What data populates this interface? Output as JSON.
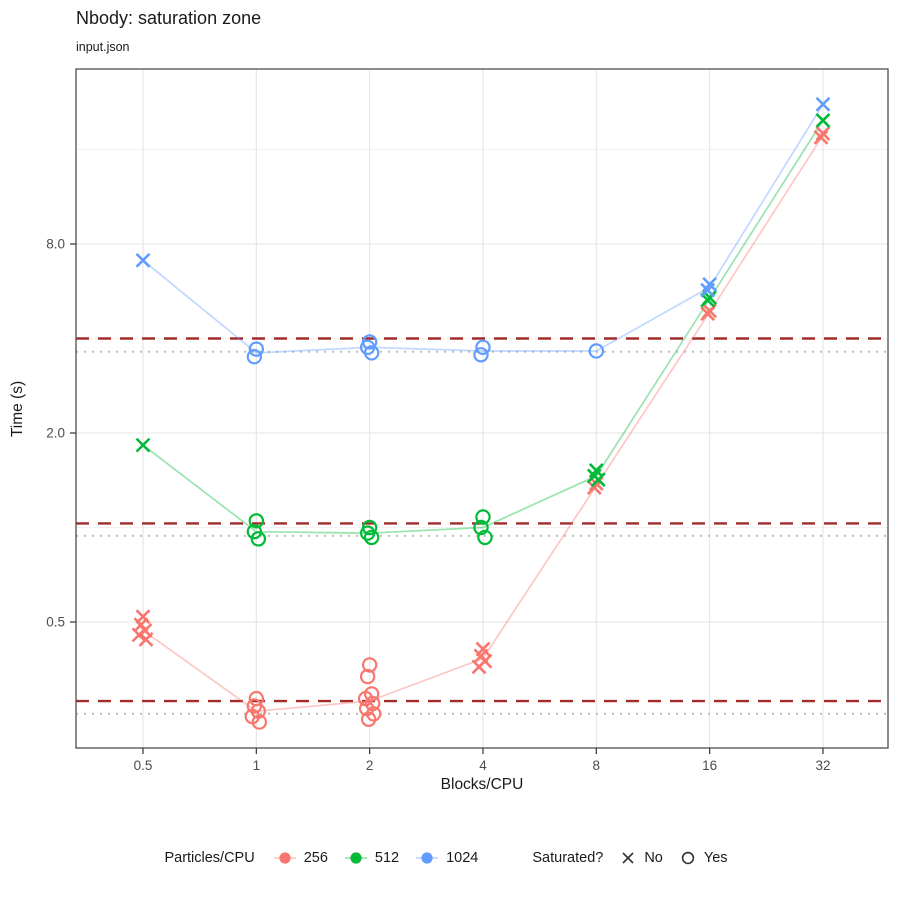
{
  "chart_data": {
    "type": "scatter",
    "title": "Nbody: saturation zone",
    "subtitle": "input.json",
    "xlabel": "Blocks/CPU",
    "ylabel": "Time (s)",
    "x_scale": {
      "type": "log2",
      "ticks": [
        {
          "v": 0.5,
          "label": "0.5"
        },
        {
          "v": 1,
          "label": "1"
        },
        {
          "v": 2,
          "label": "2"
        },
        {
          "v": 4,
          "label": "4"
        },
        {
          "v": 8,
          "label": "8"
        },
        {
          "v": 16,
          "label": "16"
        },
        {
          "v": 32,
          "label": "32"
        }
      ]
    },
    "y_scale": {
      "type": "log2",
      "ticks": [
        {
          "v": 0.5,
          "label": "0.5"
        },
        {
          "v": 2.0,
          "label": "2.0"
        },
        {
          "v": 8.0,
          "label": "8.0"
        }
      ],
      "minor": [
        1,
        4,
        16
      ],
      "range": [
        0.2,
        26
      ]
    },
    "color_legend_title": "Particles/CPU",
    "shape_legend": {
      "title": "Saturated?",
      "no_label": "No",
      "yes_label": "Yes"
    },
    "styles": {
      "threshold_color": "#a02c2c",
      "floor_color": "#bdbdbd",
      "grid_major": "#e4e4e4",
      "grid_minor": "#f1f1f1",
      "panel_border": "#4d4d4d",
      "tick_text": "#4d4d4d"
    },
    "series": [
      {
        "name": "256",
        "color": "#F8766D",
        "threshold_dashed": 0.28,
        "floor_dotted": 0.255,
        "clusters": [
          {
            "x": 0.5,
            "saturated": false,
            "times": [
              0.52,
              0.49,
              0.47,
              0.455,
              0.44
            ]
          },
          {
            "x": 1,
            "saturated": true,
            "times": [
              0.285,
              0.27,
              0.26,
              0.25,
              0.24
            ]
          },
          {
            "x": 2,
            "saturated": true,
            "times": [
              0.365,
              0.335,
              0.295,
              0.285,
              0.275,
              0.265,
              0.255,
              0.245
            ]
          },
          {
            "x": 4,
            "saturated": false,
            "times": [
              0.41,
              0.39,
              0.375,
              0.36
            ]
          },
          {
            "x": 8,
            "saturated": false,
            "times": [
              1.38,
              1.34
            ]
          },
          {
            "x": 16,
            "saturated": false,
            "times": [
              4.9,
              4.8
            ]
          },
          {
            "x": 32,
            "saturated": false,
            "times": [
              18.0,
              17.5
            ]
          }
        ]
      },
      {
        "name": "512",
        "color": "#00BA38",
        "threshold_dashed": 1.03,
        "floor_dotted": 0.94,
        "clusters": [
          {
            "x": 0.5,
            "saturated": false,
            "times": [
              1.83
            ]
          },
          {
            "x": 1,
            "saturated": true,
            "times": [
              1.05,
              0.97,
              0.92
            ]
          },
          {
            "x": 2,
            "saturated": true,
            "times": [
              1.0,
              0.96,
              0.93
            ]
          },
          {
            "x": 4,
            "saturated": true,
            "times": [
              1.08,
              1.0,
              0.93
            ]
          },
          {
            "x": 8,
            "saturated": false,
            "times": [
              1.52,
              1.46,
              1.42
            ]
          },
          {
            "x": 16,
            "saturated": false,
            "times": [
              5.4,
              5.3
            ]
          },
          {
            "x": 32,
            "saturated": false,
            "times": [
              19.8
            ]
          }
        ]
      },
      {
        "name": "1024",
        "color": "#619CFF",
        "threshold_dashed": 4.0,
        "floor_dotted": 3.63,
        "clusters": [
          {
            "x": 0.5,
            "saturated": false,
            "times": [
              7.1
            ]
          },
          {
            "x": 1,
            "saturated": true,
            "times": [
              3.7,
              3.5
            ]
          },
          {
            "x": 2,
            "saturated": true,
            "times": [
              3.9,
              3.75,
              3.6
            ]
          },
          {
            "x": 4,
            "saturated": true,
            "times": [
              3.75,
              3.55
            ]
          },
          {
            "x": 8,
            "saturated": true,
            "times": [
              3.65
            ]
          },
          {
            "x": 16,
            "saturated": false,
            "times": [
              5.95,
              5.7
            ]
          },
          {
            "x": 32,
            "saturated": false,
            "times": [
              22.3
            ]
          }
        ]
      }
    ]
  }
}
